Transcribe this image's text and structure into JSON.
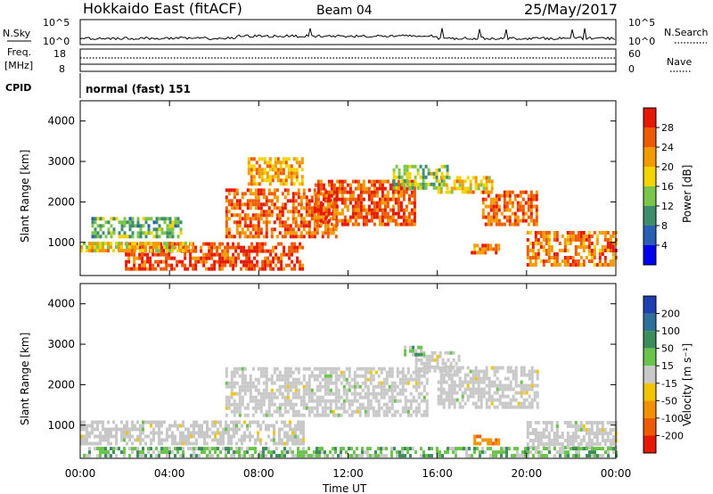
{
  "header": {
    "station": "Hokkaido East (fitACF)",
    "beam": "Beam 04",
    "date": "25/May/2017"
  },
  "noise_panel": {
    "left_label": "N.Sky",
    "right_label": "N.Search",
    "left_ticks": [
      "10^5",
      "10^0"
    ],
    "right_ticks": [
      "10^5",
      "10^0"
    ]
  },
  "freq_panel": {
    "left_label_line1": "Freq.",
    "left_label_line2": "[MHz]",
    "left_ticks": [
      "18",
      "8"
    ],
    "right_label": "Nave",
    "right_ticks": [
      "60",
      "0"
    ]
  },
  "cpid_panel": {
    "label": "CPID",
    "text": "normal (fast) 151"
  },
  "power_panel": {
    "ylabel": "Slant Range [km]",
    "yticks": [
      "4000",
      "3000",
      "2000",
      "1000"
    ],
    "colorbar_label": "Power [dB]",
    "colorbar_ticks": [
      "28",
      "24",
      "20",
      "16",
      "12",
      "8",
      "4"
    ],
    "colors": [
      "#0000ee",
      "#2a5fb5",
      "#3f8d6e",
      "#7ac64a",
      "#f2d400",
      "#f39a00",
      "#ee5a00",
      "#e61800"
    ]
  },
  "velocity_panel": {
    "ylabel": "Slant Range [km]",
    "yticks": [
      "4000",
      "3000",
      "2000",
      "1000"
    ],
    "colorbar_label": "Velocity [m s⁻¹]",
    "colorbar_ticks": [
      "200",
      "100",
      "50",
      "15",
      "-15",
      "-50",
      "-100",
      "-200"
    ],
    "colors": [
      "#1f3fb0",
      "#2f6f9c",
      "#3c8c5c",
      "#6ac34a",
      "#c8c8c8",
      "#f2c400",
      "#f39000",
      "#ee5a00",
      "#e61800"
    ],
    "ground_color": "#c8c8c8"
  },
  "xaxis": {
    "xlabel": "Time UT",
    "xticks": [
      "00:00",
      "04:00",
      "08:00",
      "12:00",
      "16:00",
      "20:00",
      "00:00"
    ]
  },
  "chart_data": {
    "type": "heatmap",
    "title": "Hokkaido East (fitACF)   Beam 04   25/May/2017",
    "xlabel": "Time UT",
    "ylabel": "Slant Range [km]",
    "xlim": [
      "00:00",
      "24:00"
    ],
    "ylim": [
      180,
      4500
    ],
    "x_unit": "hours UT",
    "panels": [
      {
        "name": "Power",
        "colorbar_label": "Power [dB]",
        "clim": [
          0,
          30
        ],
        "regions": [
          {
            "t": [
              2.0,
              10.0
            ],
            "r": [
              300,
              1000
            ],
            "v": 26
          },
          {
            "t": [
              0.0,
              5.0
            ],
            "r": [
              750,
              1000
            ],
            "v": 18
          },
          {
            "t": [
              6.5,
              11.5
            ],
            "r": [
              1100,
              2300
            ],
            "v": 24
          },
          {
            "t": [
              10.5,
              15.0
            ],
            "r": [
              1400,
              2500
            ],
            "v": 25
          },
          {
            "t": [
              14.0,
              16.5
            ],
            "r": [
              2300,
              2900
            ],
            "v": 14
          },
          {
            "t": [
              16.0,
              18.5
            ],
            "r": [
              2200,
              2600
            ],
            "v": 18
          },
          {
            "t": [
              18.0,
              20.5
            ],
            "r": [
              1400,
              2200
            ],
            "v": 24
          },
          {
            "t": [
              20.0,
              24.0
            ],
            "r": [
              400,
              1200
            ],
            "v": 23
          },
          {
            "t": [
              0.5,
              4.5
            ],
            "r": [
              1100,
              1600
            ],
            "v": 12
          },
          {
            "t": [
              7.5,
              10.0
            ],
            "r": [
              2400,
              3100
            ],
            "v": 20
          },
          {
            "t": [
              17.5,
              18.8
            ],
            "r": [
              700,
              900
            ],
            "v": 22
          }
        ]
      },
      {
        "name": "Velocity",
        "colorbar_label": "Velocity [m s⁻¹]",
        "clim": [
          -200,
          200
        ],
        "regions": [
          {
            "t": [
              0.0,
              10.0
            ],
            "r": [
              500,
              1100
            ],
            "v": 0,
            "ground": true
          },
          {
            "t": [
              6.5,
              15.5
            ],
            "r": [
              1200,
              2400
            ],
            "v": 0,
            "ground": true
          },
          {
            "t": [
              15.0,
              17.0
            ],
            "r": [
              2300,
              2800
            ],
            "v": 0,
            "ground": true
          },
          {
            "t": [
              16.0,
              20.5
            ],
            "r": [
              1400,
              2400
            ],
            "v": 0,
            "ground": true
          },
          {
            "t": [
              20.0,
              24.0
            ],
            "r": [
              400,
              1100
            ],
            "v": 0,
            "ground": true
          },
          {
            "t": [
              14.5,
              15.5
            ],
            "r": [
              2700,
              2950
            ],
            "v": 40
          },
          {
            "t": [
              17.5,
              18.8
            ],
            "r": [
              500,
              750
            ],
            "v": -80
          },
          {
            "t": [
              0.0,
              24.0
            ],
            "r": [
              200,
              400
            ],
            "v": 30
          }
        ]
      }
    ]
  }
}
